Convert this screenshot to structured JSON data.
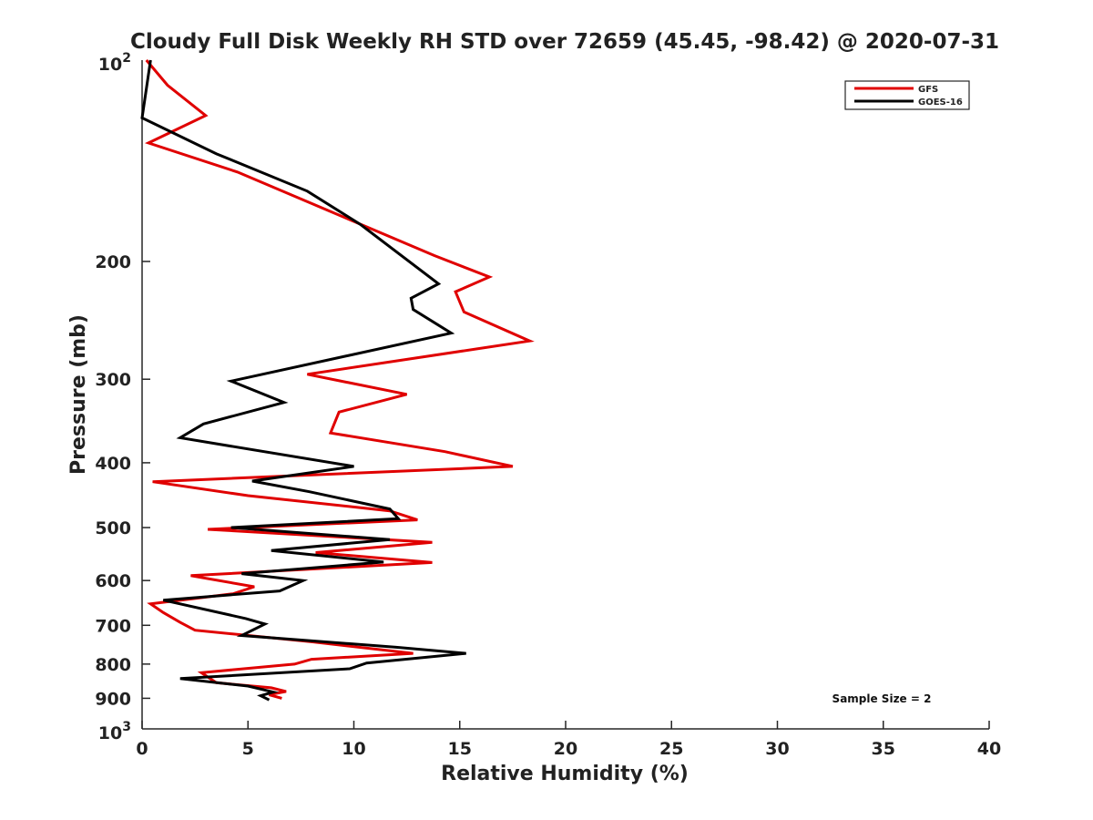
{
  "chart_data": {
    "type": "line",
    "title": "Cloudy Full Disk Weekly RH STD over 72659 (45.45, -98.42) @ 2020-07-31",
    "xlabel": "Relative Humidity (%)",
    "ylabel": "Pressure (mb)",
    "xlim": [
      0,
      40
    ],
    "ylim": [
      100,
      1000
    ],
    "y_scale": "log",
    "y_reversed": true,
    "grid": false,
    "legend_position": "top-right",
    "x_ticks": [
      "0",
      "5",
      "10",
      "15",
      "20",
      "25",
      "30",
      "35",
      "40"
    ],
    "x_tick_values": [
      0,
      5,
      10,
      15,
      20,
      25,
      30,
      35,
      40
    ],
    "y_ticks": [
      {
        "value": 200,
        "label": "200"
      },
      {
        "value": 300,
        "label": "300"
      },
      {
        "value": 400,
        "label": "400"
      },
      {
        "value": 500,
        "label": "500"
      },
      {
        "value": 600,
        "label": "600"
      },
      {
        "value": 700,
        "label": "700"
      },
      {
        "value": 800,
        "label": "800"
      },
      {
        "value": 900,
        "label": "900"
      }
    ],
    "y_tick_endpoints": [
      {
        "value": 100,
        "base": "10",
        "exp": "2"
      },
      {
        "value": 1000,
        "base": "10",
        "exp": "3"
      }
    ],
    "annotation": "Sample Size = 2",
    "series": [
      {
        "name": "GFS",
        "color": "#e00000",
        "points": [
          [
            0.2,
            100
          ],
          [
            1.2,
            109
          ],
          [
            3.0,
            121
          ],
          [
            0.3,
            133
          ],
          [
            4.5,
            147
          ],
          [
            13.8,
            196
          ],
          [
            16.4,
            211
          ],
          [
            14.8,
            222
          ],
          [
            15.2,
            238
          ],
          [
            18.3,
            263
          ],
          [
            7.8,
            295
          ],
          [
            12.5,
            316
          ],
          [
            9.3,
            336
          ],
          [
            8.9,
            361
          ],
          [
            14.3,
            385
          ],
          [
            17.5,
            405
          ],
          [
            0.5,
            427
          ],
          [
            5.0,
            448
          ],
          [
            11.7,
            472
          ],
          [
            13.0,
            487
          ],
          [
            3.1,
            503
          ],
          [
            13.7,
            526
          ],
          [
            8.2,
            545
          ],
          [
            13.7,
            564
          ],
          [
            2.3,
            590
          ],
          [
            5.3,
            613
          ],
          [
            4.3,
            628
          ],
          [
            0.4,
            650
          ],
          [
            1.0,
            670
          ],
          [
            1.8,
            693
          ],
          [
            2.5,
            712
          ],
          [
            8.0,
            741
          ],
          [
            12.8,
            771
          ],
          [
            8.0,
            787
          ],
          [
            7.2,
            800
          ],
          [
            2.8,
            824
          ],
          [
            3.5,
            853
          ],
          [
            6.1,
            868
          ],
          [
            6.8,
            879
          ],
          [
            6.0,
            889
          ],
          [
            6.6,
            900
          ]
        ]
      },
      {
        "name": "GOES-16",
        "color": "#000000",
        "points": [
          [
            0.4,
            100
          ],
          [
            0.0,
            122
          ],
          [
            3.5,
            138
          ],
          [
            7.8,
            157
          ],
          [
            10.3,
            176
          ],
          [
            14.0,
            216
          ],
          [
            12.7,
            227
          ],
          [
            12.8,
            236
          ],
          [
            14.6,
            256
          ],
          [
            4.2,
            302
          ],
          [
            6.7,
            325
          ],
          [
            2.9,
            350
          ],
          [
            1.8,
            367
          ],
          [
            10.0,
            405
          ],
          [
            5.2,
            426
          ],
          [
            7.9,
            442
          ],
          [
            11.7,
            469
          ],
          [
            12.1,
            485
          ],
          [
            4.2,
            500
          ],
          [
            11.7,
            521
          ],
          [
            6.1,
            541
          ],
          [
            11.4,
            563
          ],
          [
            4.7,
            586
          ],
          [
            7.6,
            600
          ],
          [
            6.5,
            622
          ],
          [
            1.0,
            642
          ],
          [
            4.9,
            684
          ],
          [
            5.8,
            697
          ],
          [
            4.7,
            725
          ],
          [
            12.0,
            755
          ],
          [
            15.3,
            771
          ],
          [
            10.6,
            797
          ],
          [
            9.8,
            813
          ],
          [
            1.8,
            841
          ],
          [
            5.0,
            863
          ],
          [
            6.2,
            881
          ],
          [
            5.6,
            892
          ],
          [
            6.0,
            905
          ]
        ]
      }
    ]
  }
}
